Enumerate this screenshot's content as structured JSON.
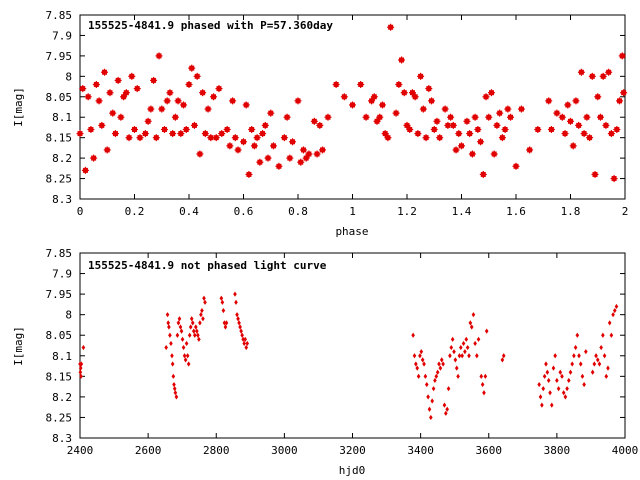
{
  "chart_data": [
    {
      "type": "scatter",
      "title": "155525-4841.9 phased with P=57.360day",
      "xlabel": "phase",
      "ylabel": "I[mag]",
      "xlim": [
        0,
        2
      ],
      "ylim": [
        8.3,
        7.85
      ],
      "y_inverted": true,
      "xticks": [
        0,
        0.2,
        0.4,
        0.6,
        0.8,
        1,
        1.2,
        1.4,
        1.6,
        1.8,
        2
      ],
      "xtick_labels": [
        "0",
        "0.2",
        "0.4",
        "0.6",
        "0.8",
        "1",
        "1.2",
        "1.4",
        "1.6",
        "1.8",
        "2"
      ],
      "yticks": [
        7.85,
        7.9,
        7.95,
        8,
        8.05,
        8.1,
        8.15,
        8.2,
        8.25,
        8.3
      ],
      "ytick_labels": [
        "7.85",
        "7.9",
        "7.95",
        "8",
        "8.05",
        "8.1",
        "8.15",
        "8.2",
        "8.25",
        "8.3"
      ],
      "grid": false,
      "marker_color": "#e00000",
      "points": [
        [
          0.0,
          8.14
        ],
        [
          0.01,
          8.03
        ],
        [
          0.02,
          8.23
        ],
        [
          0.03,
          8.05
        ],
        [
          0.04,
          8.13
        ],
        [
          0.05,
          8.2
        ],
        [
          0.06,
          8.02
        ],
        [
          0.07,
          8.06
        ],
        [
          0.08,
          8.12
        ],
        [
          0.09,
          7.99
        ],
        [
          0.1,
          8.18
        ],
        [
          0.11,
          8.04
        ],
        [
          0.12,
          8.09
        ],
        [
          0.13,
          8.14
        ],
        [
          0.14,
          8.01
        ],
        [
          0.15,
          8.1
        ],
        [
          0.16,
          8.05
        ],
        [
          0.17,
          8.04
        ],
        [
          0.18,
          8.15
        ],
        [
          0.19,
          8.0
        ],
        [
          0.2,
          8.13
        ],
        [
          0.21,
          8.03
        ],
        [
          0.22,
          8.15
        ],
        [
          0.24,
          8.14
        ],
        [
          0.25,
          8.11
        ],
        [
          0.26,
          8.08
        ],
        [
          0.27,
          8.01
        ],
        [
          0.28,
          8.15
        ],
        [
          0.29,
          7.95
        ],
        [
          0.3,
          8.08
        ],
        [
          0.31,
          8.13
        ],
        [
          0.32,
          8.06
        ],
        [
          0.33,
          8.04
        ],
        [
          0.34,
          8.14
        ],
        [
          0.35,
          8.1
        ],
        [
          0.36,
          8.06
        ],
        [
          0.37,
          8.14
        ],
        [
          0.38,
          8.07
        ],
        [
          0.39,
          8.13
        ],
        [
          0.4,
          8.02
        ],
        [
          0.41,
          7.98
        ],
        [
          0.42,
          8.12
        ],
        [
          0.43,
          8.0
        ],
        [
          0.44,
          8.19
        ],
        [
          0.45,
          8.04
        ],
        [
          0.46,
          8.14
        ],
        [
          0.47,
          8.08
        ],
        [
          0.48,
          8.15
        ],
        [
          0.49,
          8.05
        ],
        [
          0.5,
          8.15
        ],
        [
          0.51,
          8.03
        ],
        [
          0.52,
          8.14
        ],
        [
          0.54,
          8.13
        ],
        [
          0.55,
          8.17
        ],
        [
          0.56,
          8.06
        ],
        [
          0.57,
          8.15
        ],
        [
          0.58,
          8.18
        ],
        [
          0.6,
          8.16
        ],
        [
          0.61,
          8.07
        ],
        [
          0.62,
          8.24
        ],
        [
          0.63,
          8.13
        ],
        [
          0.64,
          8.17
        ],
        [
          0.65,
          8.15
        ],
        [
          0.66,
          8.21
        ],
        [
          0.67,
          8.14
        ],
        [
          0.68,
          8.12
        ],
        [
          0.69,
          8.2
        ],
        [
          0.7,
          8.09
        ],
        [
          0.71,
          8.17
        ],
        [
          0.73,
          8.22
        ],
        [
          0.75,
          8.15
        ],
        [
          0.76,
          8.1
        ],
        [
          0.77,
          8.2
        ],
        [
          0.78,
          8.16
        ],
        [
          0.8,
          8.06
        ],
        [
          0.81,
          8.21
        ],
        [
          0.82,
          8.18
        ],
        [
          0.83,
          8.2
        ],
        [
          0.84,
          8.19
        ],
        [
          0.86,
          8.11
        ],
        [
          0.87,
          8.19
        ],
        [
          0.88,
          8.12
        ],
        [
          0.89,
          8.18
        ],
        [
          0.91,
          8.1
        ],
        [
          0.94,
          8.02
        ],
        [
          0.97,
          8.05
        ],
        [
          1.0,
          8.07
        ],
        [
          1.03,
          8.02
        ],
        [
          1.05,
          8.1
        ],
        [
          1.07,
          8.06
        ],
        [
          1.08,
          8.05
        ],
        [
          1.09,
          8.11
        ],
        [
          1.1,
          8.1
        ],
        [
          1.11,
          8.07
        ],
        [
          1.12,
          8.14
        ],
        [
          1.13,
          8.15
        ],
        [
          1.14,
          7.88
        ],
        [
          1.16,
          8.09
        ],
        [
          1.17,
          8.02
        ],
        [
          1.18,
          7.96
        ],
        [
          1.19,
          8.04
        ],
        [
          1.2,
          8.12
        ],
        [
          1.21,
          8.13
        ],
        [
          1.22,
          8.04
        ],
        [
          1.23,
          8.05
        ],
        [
          1.24,
          8.14
        ],
        [
          1.25,
          8.0
        ],
        [
          1.26,
          8.08
        ],
        [
          1.27,
          8.15
        ],
        [
          1.28,
          8.03
        ],
        [
          1.29,
          8.06
        ],
        [
          1.3,
          8.13
        ],
        [
          1.31,
          8.11
        ],
        [
          1.32,
          8.15
        ],
        [
          1.34,
          8.08
        ],
        [
          1.35,
          8.12
        ],
        [
          1.36,
          8.1
        ],
        [
          1.37,
          8.12
        ],
        [
          1.38,
          8.18
        ],
        [
          1.39,
          8.14
        ],
        [
          1.4,
          8.17
        ],
        [
          1.42,
          8.11
        ],
        [
          1.43,
          8.14
        ],
        [
          1.44,
          8.19
        ],
        [
          1.45,
          8.1
        ],
        [
          1.46,
          8.13
        ],
        [
          1.47,
          8.16
        ],
        [
          1.48,
          8.24
        ],
        [
          1.49,
          8.05
        ],
        [
          1.5,
          8.1
        ],
        [
          1.51,
          8.04
        ],
        [
          1.52,
          8.19
        ],
        [
          1.53,
          8.12
        ],
        [
          1.54,
          8.09
        ],
        [
          1.55,
          8.15
        ],
        [
          1.56,
          8.13
        ],
        [
          1.57,
          8.08
        ],
        [
          1.58,
          8.1
        ],
        [
          1.6,
          8.22
        ],
        [
          1.62,
          8.08
        ],
        [
          1.65,
          8.18
        ],
        [
          1.68,
          8.13
        ],
        [
          1.72,
          8.06
        ],
        [
          1.73,
          8.13
        ],
        [
          1.75,
          8.09
        ],
        [
          1.77,
          8.1
        ],
        [
          1.78,
          8.14
        ],
        [
          1.79,
          8.07
        ],
        [
          1.8,
          8.11
        ],
        [
          1.81,
          8.17
        ],
        [
          1.82,
          8.06
        ],
        [
          1.83,
          8.12
        ],
        [
          1.84,
          7.99
        ],
        [
          1.85,
          8.14
        ],
        [
          1.86,
          8.1
        ],
        [
          1.87,
          8.15
        ],
        [
          1.88,
          8.0
        ],
        [
          1.89,
          8.24
        ],
        [
          1.9,
          8.05
        ],
        [
          1.91,
          8.1
        ],
        [
          1.92,
          8.0
        ],
        [
          1.93,
          8.12
        ],
        [
          1.94,
          7.99
        ],
        [
          1.95,
          8.14
        ],
        [
          1.96,
          8.25
        ],
        [
          1.97,
          8.13
        ],
        [
          1.98,
          8.06
        ],
        [
          1.99,
          7.95
        ],
        [
          1.995,
          8.04
        ]
      ]
    },
    {
      "type": "scatter",
      "title": "155525-4841.9 not phased light curve",
      "xlabel": "hjd0",
      "ylabel": "I[mag]",
      "xlim": [
        2400,
        4000
      ],
      "ylim": [
        8.3,
        7.85
      ],
      "y_inverted": true,
      "xticks": [
        2400,
        2600,
        2800,
        3000,
        3200,
        3400,
        3600,
        3800,
        4000
      ],
      "xtick_labels": [
        "2400",
        "2600",
        "2800",
        "3000",
        "3200",
        "3400",
        "3600",
        "3800",
        "4000"
      ],
      "yticks": [
        7.85,
        7.9,
        7.95,
        8,
        8.05,
        8.1,
        8.15,
        8.2,
        8.25,
        8.3
      ],
      "ytick_labels": [
        "7.85",
        "7.9",
        "7.95",
        "8",
        "8.05",
        "8.1",
        "8.15",
        "8.2",
        "8.25",
        "8.3"
      ],
      "grid": false,
      "marker_color": "#e00000",
      "points": [
        [
          2400,
          8.12
        ],
        [
          2401,
          8.14
        ],
        [
          2402,
          8.13
        ],
        [
          2403,
          8.15
        ],
        [
          2404,
          8.12
        ],
        [
          2410,
          8.08
        ],
        [
          2653,
          8.08
        ],
        [
          2657,
          8.0
        ],
        [
          2659,
          8.02
        ],
        [
          2661,
          8.03
        ],
        [
          2664,
          8.05
        ],
        [
          2667,
          8.07
        ],
        [
          2670,
          8.1
        ],
        [
          2672,
          8.12
        ],
        [
          2674,
          8.15
        ],
        [
          2676,
          8.17
        ],
        [
          2678,
          8.18
        ],
        [
          2680,
          8.19
        ],
        [
          2683,
          8.2
        ],
        [
          2686,
          8.05
        ],
        [
          2689,
          8.02
        ],
        [
          2692,
          8.01
        ],
        [
          2695,
          8.03
        ],
        [
          2698,
          8.04
        ],
        [
          2701,
          8.06
        ],
        [
          2704,
          8.08
        ],
        [
          2707,
          8.1
        ],
        [
          2710,
          8.11
        ],
        [
          2713,
          8.07
        ],
        [
          2716,
          8.1
        ],
        [
          2719,
          8.12
        ],
        [
          2722,
          8.05
        ],
        [
          2725,
          8.03
        ],
        [
          2728,
          8.01
        ],
        [
          2731,
          8.02
        ],
        [
          2734,
          8.04
        ],
        [
          2737,
          8.05
        ],
        [
          2740,
          8.03
        ],
        [
          2743,
          8.04
        ],
        [
          2746,
          8.05
        ],
        [
          2749,
          8.06
        ],
        [
          2752,
          8.02
        ],
        [
          2755,
          8.0
        ],
        [
          2758,
          7.99
        ],
        [
          2761,
          8.01
        ],
        [
          2764,
          7.96
        ],
        [
          2767,
          7.97
        ],
        [
          2815,
          7.96
        ],
        [
          2818,
          7.97
        ],
        [
          2821,
          7.99
        ],
        [
          2824,
          8.02
        ],
        [
          2827,
          8.03
        ],
        [
          2830,
          8.02
        ],
        [
          2855,
          7.95
        ],
        [
          2858,
          7.97
        ],
        [
          2861,
          8.0
        ],
        [
          2864,
          8.01
        ],
        [
          2867,
          8.02
        ],
        [
          2870,
          8.03
        ],
        [
          2873,
          8.04
        ],
        [
          2876,
          8.05
        ],
        [
          2879,
          8.06
        ],
        [
          2882,
          8.07
        ],
        [
          2885,
          8.06
        ],
        [
          2888,
          8.08
        ],
        [
          2891,
          8.07
        ],
        [
          3378,
          8.05
        ],
        [
          3382,
          8.1
        ],
        [
          3386,
          8.12
        ],
        [
          3390,
          8.13
        ],
        [
          3394,
          8.15
        ],
        [
          3398,
          8.1
        ],
        [
          3402,
          8.09
        ],
        [
          3406,
          8.11
        ],
        [
          3410,
          8.12
        ],
        [
          3414,
          8.15
        ],
        [
          3418,
          8.17
        ],
        [
          3422,
          8.2
        ],
        [
          3426,
          8.23
        ],
        [
          3430,
          8.25
        ],
        [
          3434,
          8.21
        ],
        [
          3438,
          8.18
        ],
        [
          3442,
          8.16
        ],
        [
          3446,
          8.15
        ],
        [
          3450,
          8.14
        ],
        [
          3454,
          8.12
        ],
        [
          3458,
          8.13
        ],
        [
          3462,
          8.11
        ],
        [
          3466,
          8.12
        ],
        [
          3470,
          8.22
        ],
        [
          3474,
          8.24
        ],
        [
          3478,
          8.23
        ],
        [
          3482,
          8.18
        ],
        [
          3486,
          8.1
        ],
        [
          3490,
          8.08
        ],
        [
          3494,
          8.06
        ],
        [
          3498,
          8.09
        ],
        [
          3502,
          8.11
        ],
        [
          3506,
          8.13
        ],
        [
          3510,
          8.15
        ],
        [
          3514,
          8.1
        ],
        [
          3518,
          8.08
        ],
        [
          3522,
          8.1
        ],
        [
          3526,
          8.07
        ],
        [
          3530,
          8.09
        ],
        [
          3534,
          8.06
        ],
        [
          3538,
          8.08
        ],
        [
          3542,
          8.1
        ],
        [
          3546,
          8.02
        ],
        [
          3550,
          8.03
        ],
        [
          3555,
          8.0
        ],
        [
          3560,
          8.07
        ],
        [
          3565,
          8.1
        ],
        [
          3570,
          8.06
        ],
        [
          3578,
          8.15
        ],
        [
          3582,
          8.17
        ],
        [
          3586,
          8.19
        ],
        [
          3590,
          8.15
        ],
        [
          3594,
          8.04
        ],
        [
          3640,
          8.11
        ],
        [
          3644,
          8.1
        ],
        [
          3748,
          8.17
        ],
        [
          3752,
          8.2
        ],
        [
          3756,
          8.22
        ],
        [
          3760,
          8.18
        ],
        [
          3764,
          8.15
        ],
        [
          3768,
          8.12
        ],
        [
          3772,
          8.14
        ],
        [
          3776,
          8.16
        ],
        [
          3780,
          8.19
        ],
        [
          3785,
          8.22
        ],
        [
          3790,
          8.13
        ],
        [
          3795,
          8.1
        ],
        [
          3800,
          8.16
        ],
        [
          3805,
          8.18
        ],
        [
          3810,
          8.14
        ],
        [
          3815,
          8.15
        ],
        [
          3820,
          8.19
        ],
        [
          3825,
          8.2
        ],
        [
          3830,
          8.18
        ],
        [
          3835,
          8.16
        ],
        [
          3840,
          8.14
        ],
        [
          3845,
          8.12
        ],
        [
          3850,
          8.1
        ],
        [
          3855,
          8.08
        ],
        [
          3860,
          8.05
        ],
        [
          3865,
          8.1
        ],
        [
          3870,
          8.12
        ],
        [
          3875,
          8.15
        ],
        [
          3880,
          8.17
        ],
        [
          3885,
          8.09
        ],
        [
          3905,
          8.14
        ],
        [
          3910,
          8.12
        ],
        [
          3915,
          8.1
        ],
        [
          3920,
          8.11
        ],
        [
          3925,
          8.12
        ],
        [
          3930,
          8.08
        ],
        [
          3935,
          8.05
        ],
        [
          3940,
          8.1
        ],
        [
          3945,
          8.15
        ],
        [
          3950,
          8.13
        ],
        [
          3955,
          8.02
        ],
        [
          3960,
          8.05
        ],
        [
          3965,
          8.0
        ],
        [
          3970,
          7.99
        ],
        [
          3975,
          7.98
        ]
      ]
    }
  ]
}
